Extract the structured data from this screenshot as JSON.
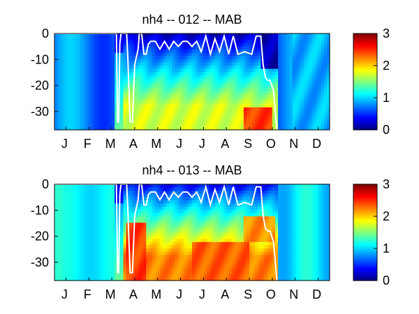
{
  "colors": {
    "frame": "#000000",
    "boundary_line": "#ffffff",
    "colormap": "jet"
  },
  "chart_data": [
    {
      "type": "heatmap",
      "title": "nh4 -- 012 -- MAB",
      "xlabel": "",
      "ylabel": "",
      "x_tick_labels": [
        "J",
        "F",
        "M",
        "A",
        "M",
        "J",
        "J",
        "A",
        "S",
        "O",
        "N",
        "D"
      ],
      "y_ticks": [
        0,
        -10,
        -20,
        -30
      ],
      "y_tick_labels": [
        "0",
        "-10",
        "-20",
        "-30"
      ],
      "xlim": [
        0,
        12
      ],
      "ylim": [
        -37,
        0
      ],
      "grid": false,
      "colorbar": {
        "range": [
          0,
          3
        ],
        "ticks": [
          0,
          1,
          2,
          3
        ],
        "tick_labels": [
          "0",
          "1",
          "2",
          "3"
        ],
        "placement": "right"
      },
      "surface_line": {
        "x": [
          0,
          2.7,
          2.75,
          2.8,
          2.85,
          2.9,
          3.15,
          3.2,
          3.3,
          3.4,
          3.5,
          3.6,
          3.65,
          3.7,
          3.8,
          3.9,
          4.0,
          4.1,
          4.2,
          4.4,
          4.6,
          4.8,
          5.0,
          5.2,
          5.4,
          5.6,
          5.8,
          6.0,
          6.2,
          6.4,
          6.6,
          6.8,
          7.0,
          7.2,
          7.4,
          7.6,
          7.8,
          8.0,
          8.3,
          8.6,
          8.8,
          9.0,
          9.1,
          9.2,
          9.3,
          9.4,
          9.55,
          9.7
        ],
        "y": [
          0,
          0,
          -34,
          -34,
          -4,
          0,
          0,
          -10,
          -34,
          -34,
          -12,
          -8,
          -6,
          0,
          0,
          -8,
          -8,
          -4,
          -3,
          -3,
          -6,
          -3,
          -6,
          -3,
          -5,
          -3,
          -3,
          -5,
          -3,
          -7,
          -1,
          -8,
          -2,
          -7,
          -1,
          -8,
          -1,
          -8,
          -7,
          -8,
          -1,
          -1,
          -12,
          -17,
          -18,
          -18,
          -22,
          -37
        ]
      },
      "value_grid_note": "colour field; estimated smooth NH4 concentration over time (x, months) and depth (y)"
    },
    {
      "type": "heatmap",
      "title": "nh4 -- 013 -- MAB",
      "xlabel": "",
      "ylabel": "",
      "x_tick_labels": [
        "J",
        "F",
        "M",
        "A",
        "M",
        "J",
        "J",
        "A",
        "S",
        "O",
        "N",
        "D"
      ],
      "y_ticks": [
        0,
        -10,
        -20,
        -30
      ],
      "y_tick_labels": [
        "0",
        "-10",
        "-20",
        "-30"
      ],
      "xlim": [
        0,
        12
      ],
      "ylim": [
        -37,
        0
      ],
      "grid": false,
      "colorbar": {
        "range": [
          0,
          3
        ],
        "ticks": [
          0,
          1,
          2,
          3
        ],
        "tick_labels": [
          "0",
          "1",
          "2",
          "3"
        ],
        "placement": "right"
      },
      "surface_line": {
        "x": [
          0,
          2.7,
          2.75,
          2.8,
          2.85,
          2.9,
          3.15,
          3.2,
          3.3,
          3.4,
          3.5,
          3.6,
          3.65,
          3.7,
          3.8,
          3.9,
          4.0,
          4.1,
          4.2,
          4.4,
          4.6,
          4.8,
          5.0,
          5.2,
          5.4,
          5.6,
          5.8,
          6.0,
          6.2,
          6.4,
          6.6,
          6.8,
          7.0,
          7.2,
          7.4,
          7.6,
          7.8,
          8.0,
          8.3,
          8.6,
          8.8,
          9.0,
          9.1,
          9.2,
          9.3,
          9.4,
          9.55,
          9.7
        ],
        "y": [
          0,
          0,
          -34,
          -34,
          -4,
          0,
          0,
          -10,
          -34,
          -34,
          -12,
          -8,
          -6,
          0,
          0,
          -8,
          -8,
          -4,
          -3,
          -3,
          -6,
          -3,
          -6,
          -3,
          -5,
          -3,
          -3,
          -5,
          -3,
          -7,
          -1,
          -8,
          -2,
          -7,
          -1,
          -8,
          -1,
          -8,
          -7,
          -8,
          -1,
          -1,
          -12,
          -17,
          -18,
          -18,
          -22,
          -37
        ]
      },
      "value_grid_note": "colour field; estimated smooth NH4 concentration over time (x, months) and depth (y)"
    }
  ]
}
